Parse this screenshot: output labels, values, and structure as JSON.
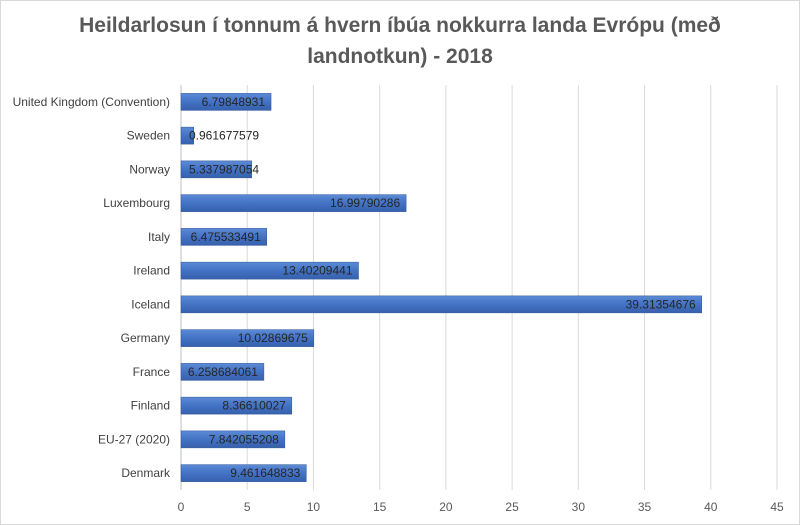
{
  "chart_data": {
    "type": "bar",
    "orientation": "horizontal",
    "title": "Heildarlosun í tonnum á hvern íbúa nokkurra landa Evrópu (með landnotkun) - 2018",
    "categories": [
      "Denmark",
      "EU-27 (2020)",
      "Finland",
      "France",
      "Germany",
      "Iceland",
      "Ireland",
      "Italy",
      "Luxembourg",
      "Norway",
      "Sweden",
      "United Kingdom (Convention)"
    ],
    "values": [
      9.461648833,
      7.842055208,
      8.36610027,
      6.258684061,
      10.02869675,
      39.31354676,
      13.40209441,
      6.475533491,
      16.99790286,
      5.337987054,
      0.961677579,
      6.79848931
    ],
    "value_labels": [
      "9.461648833",
      "7.842055208",
      "8.36610027",
      "6.258684061",
      "10.02869675",
      "39.31354676",
      "13.40209441",
      "6.475533491",
      "16.99790286",
      "5.337987054",
      "0.961677579",
      "6.79848931"
    ],
    "xlim": [
      0,
      45
    ],
    "xticks": [
      0,
      5,
      10,
      15,
      20,
      25,
      30,
      35,
      40,
      45
    ],
    "gridlines": "vertical",
    "legend": "none",
    "bar_color": "#4472c4",
    "xlabel": "",
    "ylabel": ""
  }
}
